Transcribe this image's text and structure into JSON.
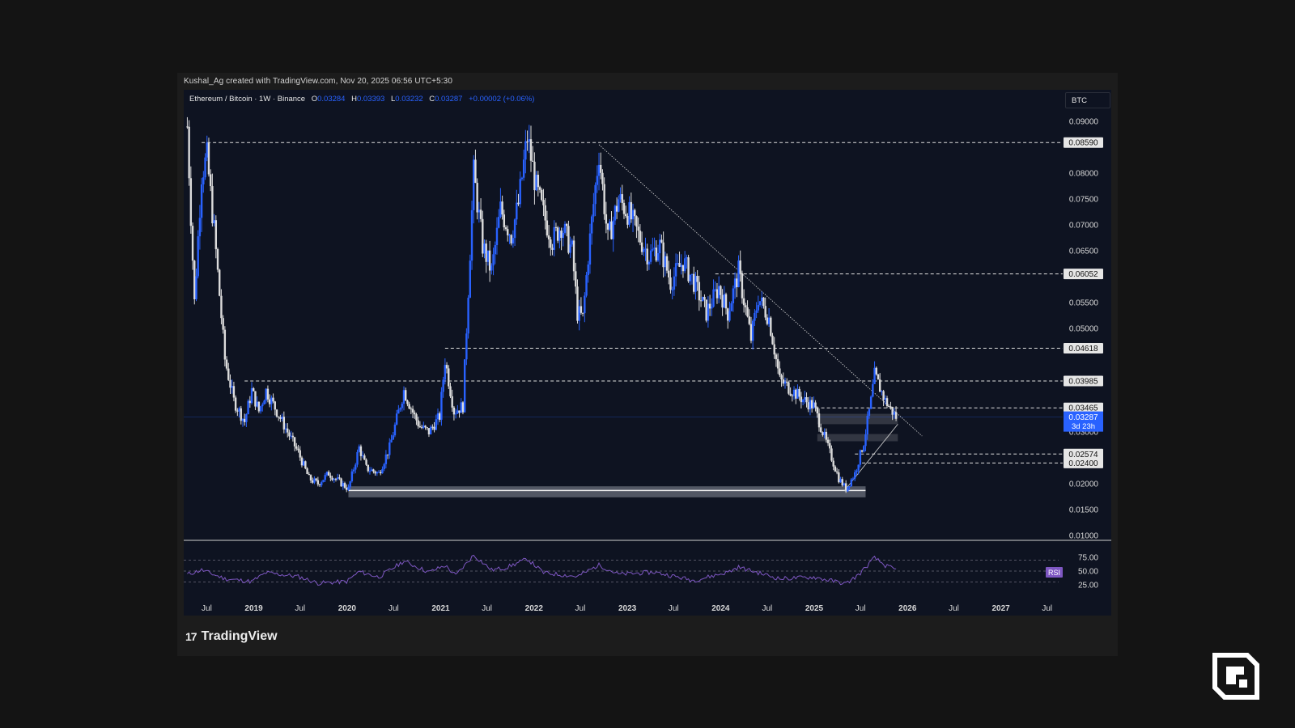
{
  "header": {
    "credit": "Kushal_Ag created with TradingView.com, Nov 20, 2025 06:56 UTC+5:30",
    "symbol": "Ethereum / Bitcoin · 1W · Binance",
    "o_label": "O",
    "o_value": "0.03284",
    "h_label": "H",
    "h_value": "0.03393",
    "l_label": "L",
    "l_value": "0.03232",
    "c_label": "C",
    "c_value": "0.03287",
    "change": "+0.00002 (+0.06%)",
    "currency": "BTC"
  },
  "footer": {
    "brand": "TradingView"
  },
  "colors": {
    "up": "#2962ff",
    "down": "#dcdcdc",
    "panel": "#0e1321",
    "rsi": "#7e57c2",
    "current_price": "#2962ff"
  },
  "chart_data": [
    {
      "type": "candlestick",
      "title": "Ethereum / Bitcoin · 1W · Binance",
      "currency": "BTC",
      "interval": "1W",
      "x_range": [
        "2018-04",
        "2027-07"
      ],
      "ylim": [
        0.01,
        0.09
      ],
      "y_ticks": [
        "0.01000",
        "0.01500",
        "0.02000",
        "0.03000",
        "0.05000",
        "0.05500",
        "0.06500",
        "0.07000",
        "0.07500",
        "0.08000",
        "0.09000"
      ],
      "x_ticks": [
        "Jul",
        "2019",
        "Jul",
        "2020",
        "Jul",
        "2021",
        "Jul",
        "2022",
        "Jul",
        "2023",
        "Jul",
        "2024",
        "Jul",
        "2025",
        "Jul",
        "2026",
        "Jul",
        "2027",
        "Jul"
      ],
      "price_path": [
        [
          "2018-04-16",
          0.089
        ],
        [
          "2018-05-14",
          0.055
        ],
        [
          "2018-06-11",
          0.08
        ],
        [
          "2018-07-02",
          0.083
        ],
        [
          "2018-07-30",
          0.069
        ],
        [
          "2018-09-10",
          0.044
        ],
        [
          "2018-10-15",
          0.036
        ],
        [
          "2018-11-26",
          0.032
        ],
        [
          "2018-12-24",
          0.038
        ],
        [
          "2019-01-21",
          0.034
        ],
        [
          "2019-02-18",
          0.038
        ],
        [
          "2019-04-01",
          0.034
        ],
        [
          "2019-05-13",
          0.03
        ],
        [
          "2019-06-24",
          0.026
        ],
        [
          "2019-08-05",
          0.021
        ],
        [
          "2019-09-09",
          0.02
        ],
        [
          "2019-10-21",
          0.022
        ],
        [
          "2020-01-06",
          0.019
        ],
        [
          "2020-02-17",
          0.027
        ],
        [
          "2020-03-16",
          0.023
        ],
        [
          "2020-05-04",
          0.022
        ],
        [
          "2020-06-15",
          0.027
        ],
        [
          "2020-08-10",
          0.038
        ],
        [
          "2020-09-21",
          0.033
        ],
        [
          "2020-10-12",
          0.031
        ],
        [
          "2020-11-16",
          0.03
        ],
        [
          "2020-12-28",
          0.033
        ],
        [
          "2021-01-18",
          0.044
        ],
        [
          "2021-02-22",
          0.034
        ],
        [
          "2021-03-29",
          0.035
        ],
        [
          "2021-05-10",
          0.08
        ],
        [
          "2021-06-14",
          0.066
        ],
        [
          "2021-07-19",
          0.061
        ],
        [
          "2021-08-23",
          0.073
        ],
        [
          "2021-10-04",
          0.068
        ],
        [
          "2021-11-01",
          0.074
        ],
        [
          "2021-12-06",
          0.087
        ],
        [
          "2022-01-10",
          0.077
        ],
        [
          "2022-02-07",
          0.072
        ],
        [
          "2022-03-14",
          0.067
        ],
        [
          "2022-04-18",
          0.07
        ],
        [
          "2022-05-30",
          0.065
        ],
        [
          "2022-06-20",
          0.053
        ],
        [
          "2022-07-11",
          0.052
        ],
        [
          "2022-08-01",
          0.064
        ],
        [
          "2022-09-12",
          0.084
        ],
        [
          "2022-10-17",
          0.067
        ],
        [
          "2022-11-28",
          0.075
        ],
        [
          "2023-01-09",
          0.072
        ],
        [
          "2023-02-13",
          0.068
        ],
        [
          "2023-03-27",
          0.064
        ],
        [
          "2023-05-08",
          0.066
        ],
        [
          "2023-06-19",
          0.059
        ],
        [
          "2023-08-07",
          0.063
        ],
        [
          "2023-09-18",
          0.059
        ],
        [
          "2023-11-06",
          0.053
        ],
        [
          "2023-12-25",
          0.058
        ],
        [
          "2024-01-29",
          0.053
        ],
        [
          "2024-03-11",
          0.061
        ],
        [
          "2024-04-29",
          0.048
        ],
        [
          "2024-05-27",
          0.056
        ],
        [
          "2024-07-08",
          0.052
        ],
        [
          "2024-08-19",
          0.04
        ],
        [
          "2024-10-07",
          0.038
        ],
        [
          "2024-11-25",
          0.036
        ],
        [
          "2024-12-30",
          0.035
        ],
        [
          "2025-02-17",
          0.028
        ],
        [
          "2025-04-07",
          0.021
        ],
        [
          "2025-05-05",
          0.019
        ],
        [
          "2025-06-09",
          0.022
        ],
        [
          "2025-07-14",
          0.028
        ],
        [
          "2025-08-11",
          0.036
        ],
        [
          "2025-08-25",
          0.041
        ],
        [
          "2025-10-06",
          0.036
        ],
        [
          "2025-11-17",
          0.03287
        ]
      ],
      "levels": [
        "0.08590",
        "0.06052",
        "0.04618",
        "0.03985",
        "0.03465",
        "0.02574",
        "0.02400"
      ],
      "current_price": "0.03287",
      "countdown": "3d 23h",
      "support_zone": [
        0.018,
        0.0195
      ],
      "trendline": [
        [
          "2022-09-12",
          0.0855
        ],
        [
          "2025-11-24",
          0.0289
        ]
      ]
    },
    {
      "type": "line",
      "series": [
        {
          "name": "RSI"
        }
      ],
      "ylim": [
        0,
        100
      ],
      "y_ticks": [
        "25.00",
        "50.00",
        "75.00"
      ],
      "bands": [
        30,
        50,
        70
      ],
      "rsi_path": [
        [
          "2018-04-16",
          44
        ],
        [
          "2018-06-11",
          52
        ],
        [
          "2018-09-10",
          36
        ],
        [
          "2018-12-24",
          31
        ],
        [
          "2019-02-18",
          47
        ],
        [
          "2019-06-24",
          40
        ],
        [
          "2019-09-09",
          28
        ],
        [
          "2019-12-30",
          31
        ],
        [
          "2020-02-17",
          49
        ],
        [
          "2020-05-04",
          39
        ],
        [
          "2020-08-10",
          68
        ],
        [
          "2020-11-16",
          48
        ],
        [
          "2021-01-18",
          60
        ],
        [
          "2021-03-01",
          42
        ],
        [
          "2021-05-10",
          79
        ],
        [
          "2021-07-19",
          52
        ],
        [
          "2021-09-13",
          56
        ],
        [
          "2021-12-06",
          72
        ],
        [
          "2022-02-07",
          47
        ],
        [
          "2022-06-20",
          40
        ],
        [
          "2022-09-12",
          61
        ],
        [
          "2022-11-28",
          44
        ],
        [
          "2023-04-17",
          48
        ],
        [
          "2023-09-18",
          33
        ],
        [
          "2024-01-29",
          48
        ],
        [
          "2024-03-11",
          57
        ],
        [
          "2024-08-19",
          36
        ],
        [
          "2024-12-30",
          39
        ],
        [
          "2025-05-05",
          27
        ],
        [
          "2025-06-23",
          43
        ],
        [
          "2025-08-25",
          74
        ],
        [
          "2025-10-06",
          60
        ],
        [
          "2025-11-17",
          52
        ]
      ]
    }
  ]
}
